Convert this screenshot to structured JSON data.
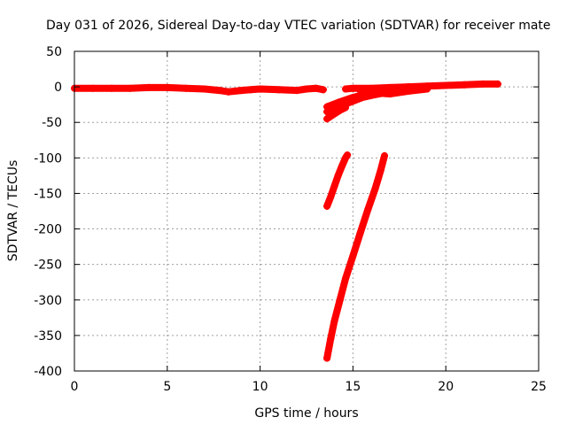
{
  "chart_data": {
    "type": "scatter",
    "title": "Day 031 of 2026, Sidereal Day-to-day VTEC variation (SDTVAR) for receiver mate",
    "xlabel": "GPS time / hours",
    "ylabel": "SDTVAR / TECUs",
    "xlim": [
      0,
      25
    ],
    "ylim": [
      -400,
      50
    ],
    "xticks": [
      0,
      5,
      10,
      15,
      20,
      25
    ],
    "xtick_labels": [
      "0",
      "5",
      "10",
      "15",
      "20",
      "25"
    ],
    "yticks": [
      50,
      0,
      -50,
      -100,
      -150,
      -200,
      -250,
      -300,
      -350,
      -400
    ],
    "ytick_labels": [
      "50",
      "0",
      "-50",
      "-100",
      "-150",
      "-200",
      "-250",
      "-300",
      "-350",
      "-400"
    ],
    "grid": true,
    "legend": "none",
    "series_color": "#ff0000",
    "series": [
      {
        "points": [
          [
            0,
            -2
          ],
          [
            1,
            -2
          ],
          [
            2,
            -2
          ],
          [
            3,
            -2
          ],
          [
            4,
            -1
          ],
          [
            5,
            -1
          ],
          [
            6,
            -2
          ],
          [
            7,
            -3
          ],
          [
            7.8,
            -5
          ],
          [
            8.3,
            -7
          ],
          [
            9,
            -5
          ],
          [
            9.5,
            -4
          ],
          [
            10,
            -3
          ],
          [
            11,
            -4
          ],
          [
            12,
            -5
          ],
          [
            12.5,
            -3
          ],
          [
            13,
            -2
          ],
          [
            13.4,
            -4
          ]
        ]
      },
      {
        "points": [
          [
            14.6,
            -3
          ],
          [
            15,
            -2
          ],
          [
            16,
            -2
          ],
          [
            17,
            -1
          ],
          [
            18,
            0
          ],
          [
            19,
            1
          ],
          [
            20,
            2
          ],
          [
            21,
            3
          ],
          [
            22,
            4
          ],
          [
            22.8,
            4
          ]
        ]
      },
      {
        "points": [
          [
            13.6,
            -35
          ],
          [
            14,
            -30
          ],
          [
            14.5,
            -25
          ],
          [
            15,
            -20
          ],
          [
            15.5,
            -15
          ],
          [
            16,
            -12
          ],
          [
            17,
            -7
          ],
          [
            18,
            -5
          ],
          [
            19,
            -2
          ]
        ]
      },
      {
        "points": [
          [
            13.6,
            -28
          ],
          [
            14.2,
            -22
          ],
          [
            15,
            -15
          ],
          [
            16,
            -8
          ],
          [
            17,
            -3
          ],
          [
            18,
            0
          ]
        ]
      },
      {
        "points": [
          [
            15.4,
            -5
          ],
          [
            16,
            -8
          ],
          [
            17,
            -10
          ],
          [
            18,
            -6
          ],
          [
            19,
            -3
          ]
        ]
      },
      {
        "points": [
          [
            13.6,
            -45
          ],
          [
            14,
            -38
          ],
          [
            14.3,
            -33
          ],
          [
            14.6,
            -29
          ]
        ]
      },
      {
        "points": [
          [
            13.6,
            -168
          ],
          [
            13.8,
            -155
          ],
          [
            14,
            -140
          ],
          [
            14.2,
            -125
          ],
          [
            14.4,
            -112
          ],
          [
            14.6,
            -100
          ],
          [
            14.7,
            -96
          ]
        ]
      },
      {
        "points": [
          [
            13.6,
            -382
          ],
          [
            13.8,
            -355
          ],
          [
            14,
            -330
          ],
          [
            14.3,
            -300
          ],
          [
            14.6,
            -270
          ],
          [
            15,
            -238
          ],
          [
            15.4,
            -205
          ],
          [
            15.8,
            -173
          ],
          [
            16.2,
            -143
          ],
          [
            16.5,
            -117
          ],
          [
            16.7,
            -97
          ]
        ]
      }
    ]
  }
}
